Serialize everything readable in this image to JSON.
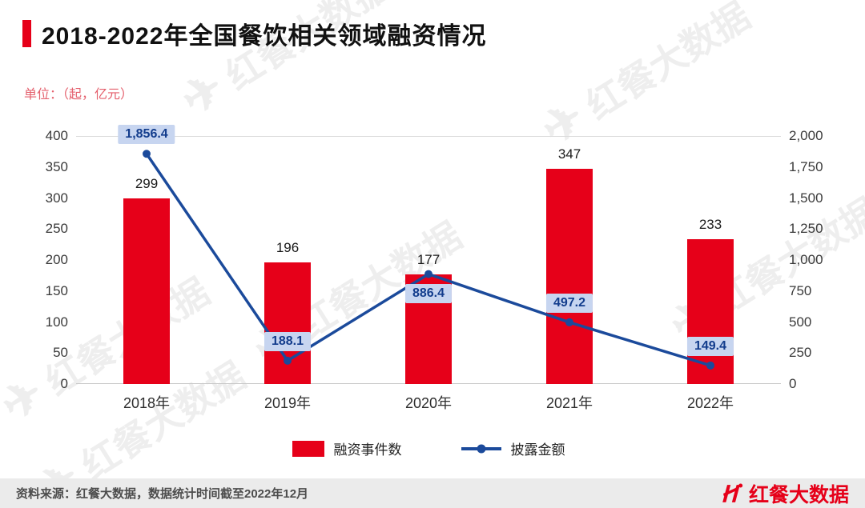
{
  "header": {
    "title": "2018-2022年全国餐饮相关领域融资情况"
  },
  "subtitle": "单位：（起，亿元）",
  "watermark": {
    "text": "红餐大数据"
  },
  "icons": {
    "watermark_plane": "✈"
  },
  "colors": {
    "accent": "#e60019",
    "bar": "#e60019",
    "line": "#1b4a9b",
    "point_label_bg": "#c7d5f0",
    "point_label_text": "#123c8c",
    "brand_red": "#e60019"
  },
  "chart_data": {
    "type": "bar+line",
    "categories": [
      "2018年",
      "2019年",
      "2020年",
      "2021年",
      "2022年"
    ],
    "series": [
      {
        "name": "融资事件数",
        "type": "bar",
        "axis": "left",
        "values": [
          299,
          196,
          177,
          347,
          233
        ]
      },
      {
        "name": "披露金额",
        "type": "line",
        "axis": "right",
        "values": [
          1856.4,
          188.1,
          886.4,
          497.2,
          149.4
        ],
        "labels": [
          "1,856.4",
          "188.1",
          "886.4",
          "497.2",
          "149.4"
        ]
      }
    ],
    "left_axis": {
      "min": 0,
      "max": 400,
      "step": 50,
      "ticks": [
        "400",
        "350",
        "300",
        "250",
        "200",
        "150",
        "100",
        "50",
        "0"
      ]
    },
    "right_axis": {
      "min": 0,
      "max": 2000,
      "step": 250,
      "ticks": [
        "2,000",
        "1,750",
        "1,500",
        "1,250",
        "1,000",
        "750",
        "500",
        "250",
        "0"
      ]
    },
    "grid": "off",
    "legend_position": "bottom"
  },
  "footer": {
    "source": "资料来源：红餐大数据，数据统计时间截至2022年12月",
    "brand": "红餐大数据"
  }
}
